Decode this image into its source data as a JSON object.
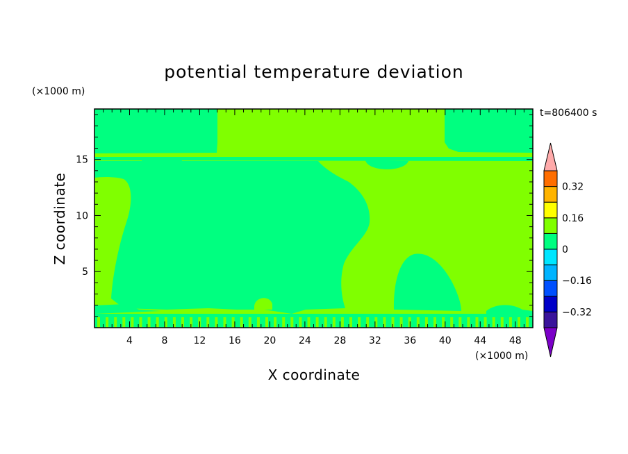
{
  "chart_data": {
    "type": "heatmap",
    "title": "potential temperature deviation",
    "xlabel": "X coordinate",
    "ylabel": "Z coordinate",
    "x_unit": "(×1000 m)",
    "y_unit": "(×1000 m)",
    "time_label": "t=806400 s",
    "xlim": [
      0,
      50
    ],
    "ylim": [
      0,
      19.5
    ],
    "x_ticks": [
      4,
      8,
      12,
      16,
      20,
      24,
      28,
      32,
      36,
      40,
      44,
      48
    ],
    "y_ticks": [
      5,
      10,
      15
    ],
    "colorbar": {
      "levels": [
        -0.4,
        -0.32,
        -0.24,
        -0.16,
        -0.08,
        0,
        0.08,
        0.16,
        0.24,
        0.32,
        0.4
      ],
      "labels": [
        "0.32",
        "0.16",
        "0",
        "−0.16",
        "−0.32"
      ],
      "label_values": [
        0.32,
        0.16,
        0,
        -0.16,
        -0.32
      ],
      "colors": [
        "#7b00c8",
        "#3a149b",
        "#0000c8",
        "#0050ff",
        "#00b4ff",
        "#00e6ff",
        "#00ff80",
        "#80ff00",
        "#ffff00",
        "#ffb400",
        "#ff6e00",
        "#ff0000",
        "#ffaaaa"
      ]
    }
  }
}
